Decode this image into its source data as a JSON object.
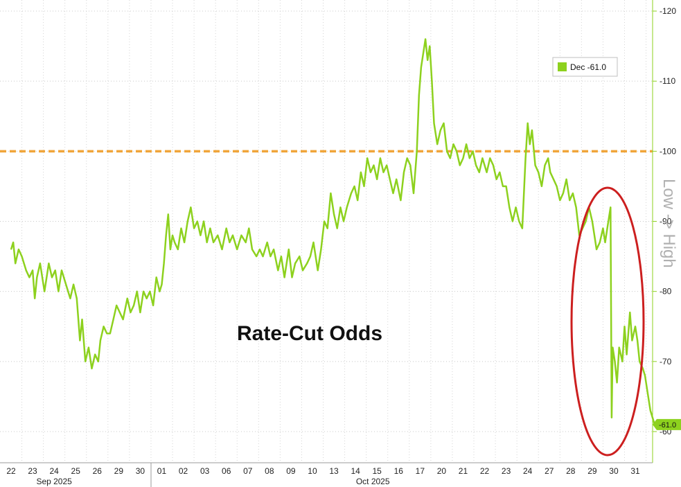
{
  "chart_data": {
    "type": "line",
    "title": "Rate-Cut Odds",
    "y_axis_label": "Low -> High",
    "ylim": [
      55,
      121
    ],
    "y_ticks": [
      120,
      110,
      100,
      90,
      80,
      70,
      60
    ],
    "y_tick_labels": [
      "-120",
      "-110",
      "-100",
      "-90",
      "-80",
      "-70",
      "-60"
    ],
    "grid": true,
    "legend": {
      "position": "top-right",
      "entries": [
        {
          "label": "Dec  -61.0",
          "color": "#8dd11e"
        }
      ]
    },
    "last_value_label": "-61.0",
    "reference_line": {
      "y": 100,
      "color": "#f0a53a",
      "style": "dashed"
    },
    "x_categories": [
      "22",
      "23",
      "24",
      "25",
      "26",
      "29",
      "30",
      "01",
      "02",
      "03",
      "06",
      "07",
      "08",
      "09",
      "10",
      "13",
      "14",
      "15",
      "16",
      "17",
      "20",
      "21",
      "22",
      "23",
      "24",
      "27",
      "28",
      "29",
      "30",
      "31"
    ],
    "months": [
      {
        "label": "Sep 2025",
        "under_index": 2
      },
      {
        "label": "Oct 2025",
        "under_index": 17
      }
    ],
    "series": [
      {
        "name": "Dec",
        "color": "#8dd11e",
        "points": [
          [
            0.0,
            86
          ],
          [
            0.1,
            87
          ],
          [
            0.2,
            84
          ],
          [
            0.35,
            86
          ],
          [
            0.5,
            85
          ],
          [
            0.7,
            83
          ],
          [
            0.85,
            82
          ],
          [
            1.0,
            83
          ],
          [
            1.1,
            79
          ],
          [
            1.2,
            82
          ],
          [
            1.35,
            84
          ],
          [
            1.55,
            80
          ],
          [
            1.75,
            84
          ],
          [
            1.9,
            82
          ],
          [
            2.05,
            83
          ],
          [
            2.2,
            80
          ],
          [
            2.35,
            83
          ],
          [
            2.55,
            81
          ],
          [
            2.75,
            79
          ],
          [
            2.9,
            81
          ],
          [
            3.05,
            79
          ],
          [
            3.2,
            73
          ],
          [
            3.3,
            76
          ],
          [
            3.45,
            70
          ],
          [
            3.6,
            72
          ],
          [
            3.75,
            69
          ],
          [
            3.9,
            71
          ],
          [
            4.05,
            70
          ],
          [
            4.15,
            73
          ],
          [
            4.3,
            75
          ],
          [
            4.45,
            74
          ],
          [
            4.6,
            74
          ],
          [
            4.75,
            76
          ],
          [
            4.9,
            78
          ],
          [
            5.05,
            77
          ],
          [
            5.2,
            76
          ],
          [
            5.4,
            79
          ],
          [
            5.55,
            77
          ],
          [
            5.7,
            78
          ],
          [
            5.85,
            80
          ],
          [
            6.0,
            77
          ],
          [
            6.15,
            80
          ],
          [
            6.3,
            79
          ],
          [
            6.45,
            80
          ],
          [
            6.6,
            78
          ],
          [
            6.75,
            82
          ],
          [
            6.9,
            80
          ],
          [
            7.0,
            81
          ],
          [
            7.1,
            84
          ],
          [
            7.2,
            88
          ],
          [
            7.3,
            91
          ],
          [
            7.4,
            86
          ],
          [
            7.5,
            88
          ],
          [
            7.6,
            87
          ],
          [
            7.75,
            86
          ],
          [
            7.9,
            89
          ],
          [
            8.05,
            87
          ],
          [
            8.2,
            90
          ],
          [
            8.35,
            92
          ],
          [
            8.5,
            89
          ],
          [
            8.65,
            90
          ],
          [
            8.8,
            88
          ],
          [
            8.95,
            90
          ],
          [
            9.1,
            87
          ],
          [
            9.25,
            89
          ],
          [
            9.4,
            87
          ],
          [
            9.6,
            88
          ],
          [
            9.8,
            86
          ],
          [
            10.0,
            89
          ],
          [
            10.15,
            87
          ],
          [
            10.3,
            88
          ],
          [
            10.5,
            86
          ],
          [
            10.7,
            88
          ],
          [
            10.9,
            87
          ],
          [
            11.05,
            89
          ],
          [
            11.2,
            86
          ],
          [
            11.4,
            85
          ],
          [
            11.55,
            86
          ],
          [
            11.7,
            85
          ],
          [
            11.9,
            87
          ],
          [
            12.05,
            85
          ],
          [
            12.2,
            86
          ],
          [
            12.4,
            83
          ],
          [
            12.55,
            85
          ],
          [
            12.7,
            82
          ],
          [
            12.9,
            86
          ],
          [
            13.05,
            82
          ],
          [
            13.2,
            84
          ],
          [
            13.4,
            85
          ],
          [
            13.55,
            83
          ],
          [
            13.75,
            84
          ],
          [
            13.9,
            85
          ],
          [
            14.05,
            87
          ],
          [
            14.25,
            83
          ],
          [
            14.4,
            86
          ],
          [
            14.55,
            90
          ],
          [
            14.7,
            89
          ],
          [
            14.85,
            94
          ],
          [
            15.0,
            91
          ],
          [
            15.15,
            89
          ],
          [
            15.3,
            92
          ],
          [
            15.45,
            90
          ],
          [
            15.6,
            92
          ],
          [
            15.8,
            94
          ],
          [
            15.95,
            95
          ],
          [
            16.1,
            93
          ],
          [
            16.25,
            97
          ],
          [
            16.4,
            95
          ],
          [
            16.55,
            99
          ],
          [
            16.7,
            97
          ],
          [
            16.85,
            98
          ],
          [
            17.0,
            96
          ],
          [
            17.15,
            99
          ],
          [
            17.3,
            97
          ],
          [
            17.45,
            98
          ],
          [
            17.6,
            96
          ],
          [
            17.75,
            94
          ],
          [
            17.9,
            96
          ],
          [
            18.1,
            93
          ],
          [
            18.25,
            97
          ],
          [
            18.4,
            99
          ],
          [
            18.55,
            98
          ],
          [
            18.7,
            94
          ],
          [
            18.85,
            100
          ],
          [
            18.95,
            108
          ],
          [
            19.05,
            112
          ],
          [
            19.15,
            114
          ],
          [
            19.25,
            116
          ],
          [
            19.35,
            113
          ],
          [
            19.45,
            115
          ],
          [
            19.55,
            110
          ],
          [
            19.65,
            104
          ],
          [
            19.8,
            101
          ],
          [
            19.95,
            103
          ],
          [
            20.1,
            104
          ],
          [
            20.25,
            100
          ],
          [
            20.4,
            99
          ],
          [
            20.55,
            101
          ],
          [
            20.7,
            100
          ],
          [
            20.85,
            98
          ],
          [
            21.0,
            99
          ],
          [
            21.15,
            101
          ],
          [
            21.3,
            99
          ],
          [
            21.45,
            100
          ],
          [
            21.6,
            98
          ],
          [
            21.75,
            97
          ],
          [
            21.9,
            99
          ],
          [
            22.1,
            97
          ],
          [
            22.25,
            99
          ],
          [
            22.4,
            98
          ],
          [
            22.55,
            96
          ],
          [
            22.7,
            97
          ],
          [
            22.85,
            95
          ],
          [
            23.0,
            95
          ],
          [
            23.15,
            92
          ],
          [
            23.3,
            90
          ],
          [
            23.45,
            92
          ],
          [
            23.6,
            90
          ],
          [
            23.75,
            89
          ],
          [
            23.9,
            99
          ],
          [
            24.0,
            104
          ],
          [
            24.1,
            101
          ],
          [
            24.2,
            103
          ],
          [
            24.35,
            98
          ],
          [
            24.5,
            97
          ],
          [
            24.65,
            95
          ],
          [
            24.8,
            98
          ],
          [
            24.95,
            99
          ],
          [
            25.05,
            97
          ],
          [
            25.2,
            96
          ],
          [
            25.35,
            95
          ],
          [
            25.5,
            93
          ],
          [
            25.65,
            94
          ],
          [
            25.8,
            96
          ],
          [
            25.95,
            93
          ],
          [
            26.1,
            94
          ],
          [
            26.25,
            92
          ],
          [
            26.4,
            88
          ],
          [
            26.55,
            89
          ],
          [
            26.7,
            90
          ],
          [
            26.85,
            92
          ],
          [
            27.0,
            90
          ],
          [
            27.1,
            88
          ],
          [
            27.2,
            86
          ],
          [
            27.35,
            87
          ],
          [
            27.5,
            89
          ],
          [
            27.6,
            87
          ],
          [
            27.7,
            89
          ],
          [
            27.85,
            92
          ],
          [
            27.9,
            62
          ],
          [
            27.95,
            72
          ],
          [
            28.05,
            70
          ],
          [
            28.15,
            67
          ],
          [
            28.25,
            72
          ],
          [
            28.4,
            70
          ],
          [
            28.5,
            75
          ],
          [
            28.6,
            71
          ],
          [
            28.75,
            77
          ],
          [
            28.85,
            73
          ],
          [
            29.0,
            75
          ],
          [
            29.1,
            73
          ],
          [
            29.2,
            70
          ],
          [
            29.35,
            69
          ],
          [
            29.45,
            68
          ],
          [
            29.55,
            66
          ],
          [
            29.7,
            63
          ],
          [
            29.8,
            62
          ],
          [
            29.9,
            61
          ]
        ]
      }
    ]
  }
}
